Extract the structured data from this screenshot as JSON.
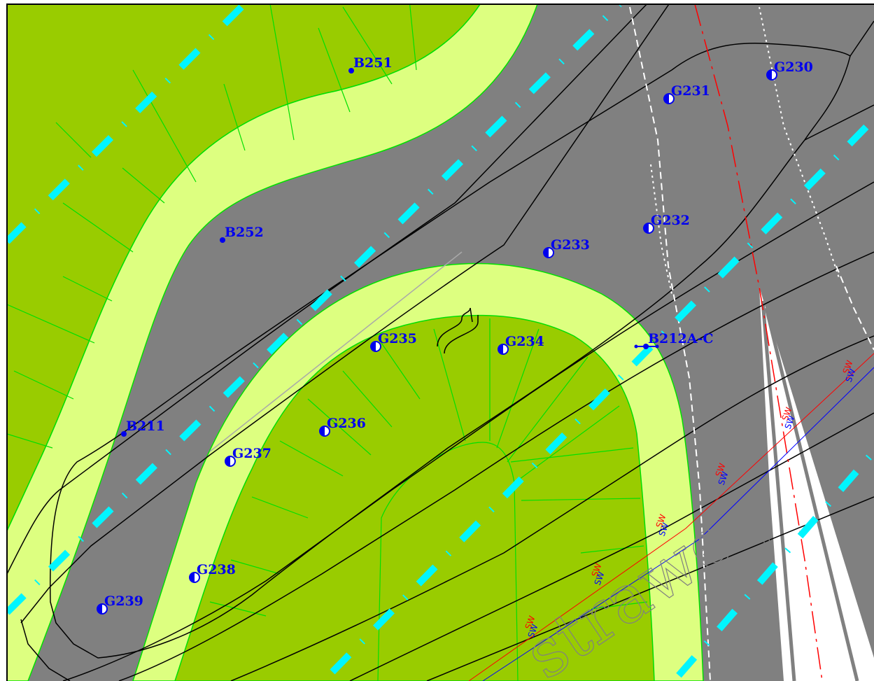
{
  "colors": {
    "road": "#808080",
    "lawn": "#99cc00",
    "verge": "#ddff80",
    "boundary": "#00e000",
    "label": "#0000ee",
    "cyan_line": "#00f5ff",
    "red_line": "#ff0000",
    "sewer_blue": "#0000ff",
    "frame": "#000000"
  },
  "markers": [
    {
      "id": "B251",
      "type": "borehole"
    },
    {
      "id": "G230",
      "type": "half-filled"
    },
    {
      "id": "G231",
      "type": "half-filled"
    },
    {
      "id": "B252",
      "type": "borehole"
    },
    {
      "id": "G232",
      "type": "half-filled"
    },
    {
      "id": "G233",
      "type": "half-filled"
    },
    {
      "id": "G235",
      "type": "half-filled"
    },
    {
      "id": "G234",
      "type": "half-filled"
    },
    {
      "id": "B212A-C",
      "type": "borehole-group"
    },
    {
      "id": "B211",
      "type": "borehole"
    },
    {
      "id": "G236",
      "type": "half-filled"
    },
    {
      "id": "G237",
      "type": "half-filled"
    },
    {
      "id": "G238",
      "type": "half-filled"
    },
    {
      "id": "G239",
      "type": "half-filled"
    }
  ],
  "utility_labels": {
    "sewer_code": "SW"
  },
  "street_name": {
    "visible_text": "straweg"
  }
}
